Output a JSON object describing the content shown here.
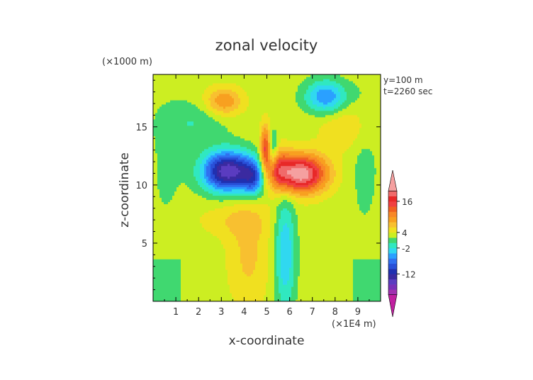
{
  "chart_data": {
    "type": "heatmap",
    "title": "zonal velocity",
    "xlabel": "x-coordinate",
    "ylabel": "z-coordinate",
    "x_unit": "(×1E4 m)",
    "y_unit": "(×1000 m)",
    "annotations": [
      "y=100 m",
      "t=2260 sec"
    ],
    "xlim": [
      0,
      10
    ],
    "ylim": [
      0,
      19.5
    ],
    "x_ticks": [
      1,
      2,
      3,
      4,
      5,
      6,
      7,
      8,
      9
    ],
    "y_ticks": [
      5,
      10,
      15
    ],
    "colorbar": {
      "levels": [
        -22,
        -20,
        -18,
        -16,
        -14,
        -12,
        -10,
        -8,
        -6,
        -4,
        -2,
        0,
        2,
        4,
        6,
        8,
        10,
        12,
        14,
        16,
        18,
        20,
        22
      ],
      "colors": [
        "#c020a0",
        "#a030b0",
        "#7830b8",
        "#5a3cc0",
        "#3a2aa0",
        "#2030b0",
        "#2850d8",
        "#3070f0",
        "#2aa0ff",
        "#30d8f0",
        "#30e8c0",
        "#40d870",
        "#ccee22",
        "#f0e020",
        "#f8c030",
        "#f8a020",
        "#f88828",
        "#f06020",
        "#f04040",
        "#e82828",
        "#f06a6a",
        "#f5a0a0"
      ],
      "tick_labels": [
        "16",
        "4",
        "-2",
        "-12"
      ],
      "tick_values": [
        16,
        4,
        -2,
        -12
      ]
    }
  }
}
